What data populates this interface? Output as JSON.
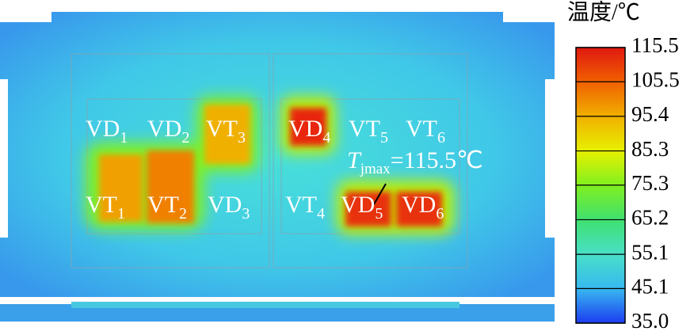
{
  "chart_data": {
    "type": "contour",
    "colorbar": {
      "title": "温度/℃",
      "lim": [
        35,
        115.5
      ],
      "ticks": [
        115.5,
        105.5,
        95.4,
        85.3,
        75.3,
        65.2,
        55.1,
        45.1,
        {
          "value": 35,
          "label": "35.0"
        }
      ],
      "colors": [
        "#1c3cf0",
        "#38b8f0",
        "#48e0c8",
        "#40e070",
        "#80f020",
        "#e8f000",
        "#f0b000",
        "#f06000",
        "#e01810"
      ]
    },
    "labels": [
      {
        "text": "VD",
        "sub": "1"
      },
      {
        "text": "VD",
        "sub": "2"
      },
      {
        "text": "VT",
        "sub": "3"
      },
      {
        "text": "VD",
        "sub": "4"
      },
      {
        "text": "VT",
        "sub": "5"
      },
      {
        "text": "VT",
        "sub": "6"
      },
      {
        "text": "VT",
        "sub": "1"
      },
      {
        "text": "VT",
        "sub": "2"
      },
      {
        "text": "VD",
        "sub": "3"
      },
      {
        "text": "VT",
        "sub": "4"
      },
      {
        "text": "VD",
        "sub": "5"
      },
      {
        "text": "VD",
        "sub": "6"
      }
    ],
    "annotation": {
      "symbol": "T",
      "sub": "jmax",
      "text": "=115.5℃"
    }
  }
}
